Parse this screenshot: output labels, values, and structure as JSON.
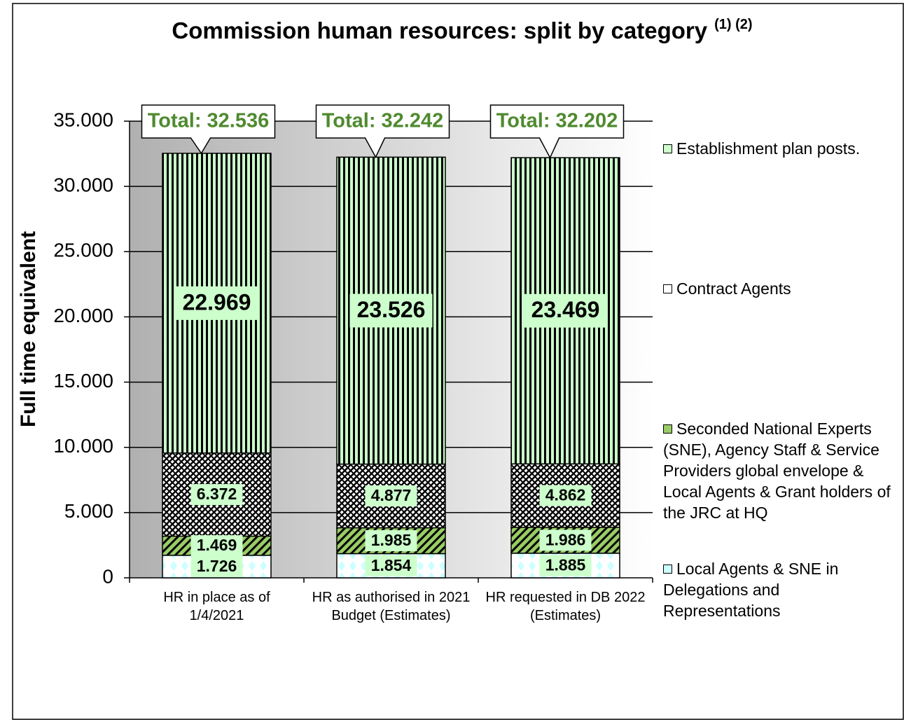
{
  "chart_data": {
    "type": "stacked_bar",
    "title": "Commission human resources: split by category",
    "title_note": "(1) (2)",
    "y_label": "Full time equivalent",
    "categories": [
      "HR in place as of 1/4/2021",
      "HR as authorised in 2021 Budget (Estimates)",
      "HR requested in DB 2022 (Estimates)"
    ],
    "series": [
      {
        "name": "Local Agents & SNE in Delegations and Representations",
        "color": "#ccffff",
        "values": [
          1726,
          1854,
          1885
        ],
        "value_labels": [
          "1.726",
          "1.854",
          "1.885"
        ]
      },
      {
        "name": "Seconded National Experts (SNE), Agency Staff & Service Providers global envelope  & Local Agents & Grant holders of the JRC at HQ",
        "color": "#99cc66",
        "values": [
          1469,
          1985,
          1986
        ],
        "value_labels": [
          "1.469",
          "1.985",
          "1.986"
        ]
      },
      {
        "name": "Contract Agents",
        "color": "#ffffff",
        "values": [
          6372,
          4877,
          4862
        ],
        "value_labels": [
          "6.372",
          "4.877",
          "4.862"
        ]
      },
      {
        "name": "Establishment plan posts.",
        "color": "#ccffcc",
        "values": [
          22969,
          23526,
          23469
        ],
        "value_labels": [
          "22.969",
          "23.526",
          "23.469"
        ]
      }
    ],
    "totals": {
      "values": [
        32536,
        32242,
        32202
      ],
      "value_labels": [
        "Total: 32.536",
        "Total: 32.242",
        "Total: 32.202"
      ]
    },
    "ylim": [
      0,
      35000
    ],
    "yticks": [
      0,
      {
        "value": 5000,
        "label": "5.000"
      },
      {
        "value": 10000,
        "label": "10.000"
      },
      {
        "value": 15000,
        "label": "15.000"
      },
      {
        "value": 20000,
        "label": "20.000"
      },
      {
        "value": 25000,
        "label": "25.000"
      },
      {
        "value": 30000,
        "label": "30.000"
      },
      {
        "value": 35000,
        "label": "35.000"
      }
    ],
    "grid": true
  }
}
